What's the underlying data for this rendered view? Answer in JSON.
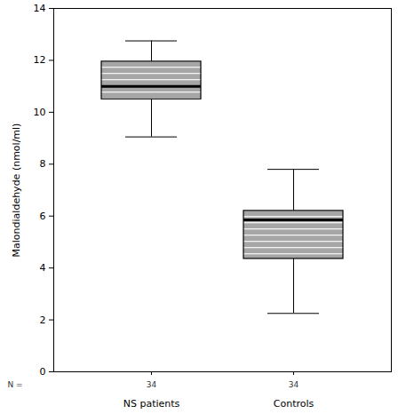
{
  "chart_data": {
    "type": "box",
    "y_label": "Malondialdehyde (nmol/ml)",
    "categories": [
      "NS patients",
      "Controls"
    ],
    "min": [
      9.05,
      2.25
    ],
    "q1": [
      10.5,
      4.35
    ],
    "median": [
      11.0,
      5.85
    ],
    "q3": [
      11.95,
      6.2
    ],
    "max": [
      12.75,
      7.8
    ],
    "n_label": "N =",
    "n": [
      34,
      34
    ],
    "color": "#a6a6a6",
    "ylim": [
      0,
      14
    ],
    "yticks": [
      0,
      2,
      4,
      6,
      8,
      10,
      12,
      14
    ],
    "grid": false
  }
}
